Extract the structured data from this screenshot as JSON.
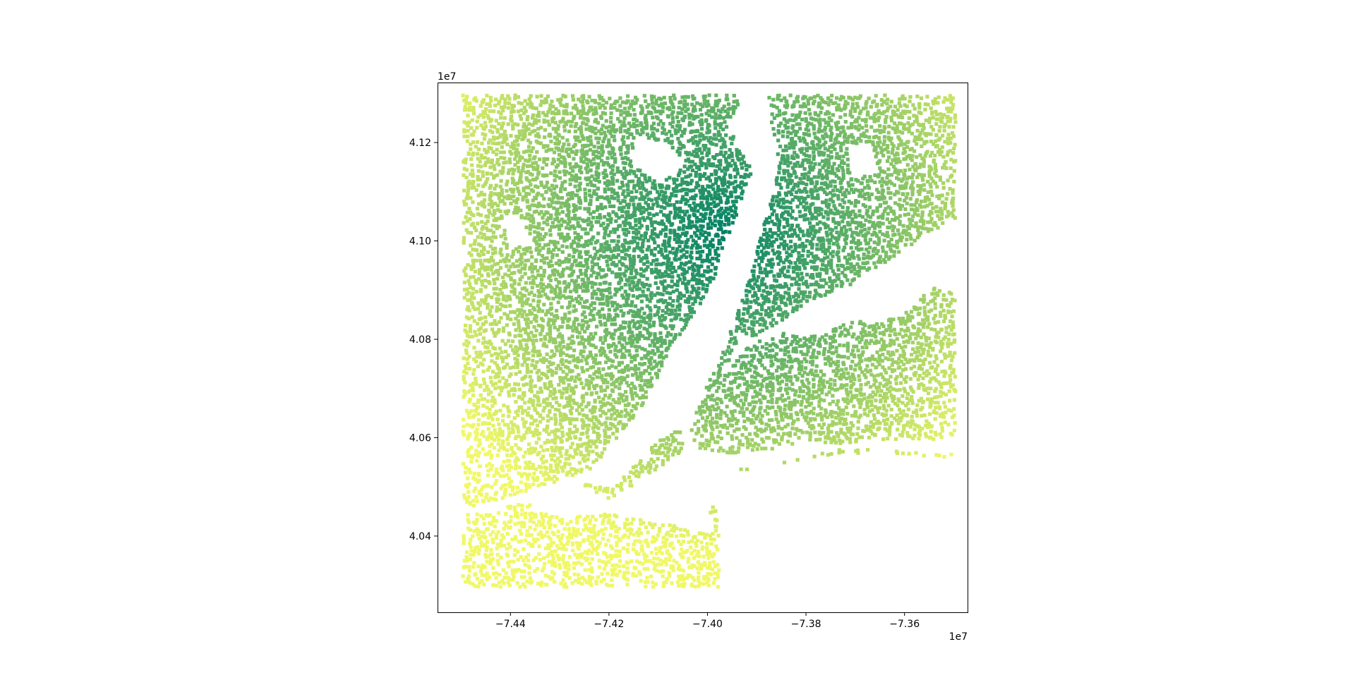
{
  "chart_data": {
    "type": "scatter",
    "title": "",
    "xlabel": "",
    "ylabel": "",
    "x_offset_text": "1e7",
    "y_offset_text": "1e7",
    "xlim": [
      -74.548,
      -73.472
    ],
    "ylim": [
      40.245,
      41.322
    ],
    "x_ticks": [
      -74.4,
      -74.2,
      -74.0,
      -73.8,
      -73.6
    ],
    "x_tick_labels": [
      "−7.44",
      "−7.42",
      "−7.40",
      "−7.38",
      "−7.36"
    ],
    "y_ticks": [
      40.4,
      40.6,
      40.8,
      41.0,
      41.2
    ],
    "y_tick_labels": [
      "4.04",
      "4.06",
      "4.08",
      "4.10",
      "4.12"
    ],
    "grid": false,
    "legend": "none",
    "colormap": "summer",
    "colormap_colors": [
      "#008066",
      "#f0f866"
    ],
    "point_color": "#7fb266",
    "data_extent": {
      "x": [
        -74.5,
        -73.5
      ],
      "y": [
        40.3,
        41.3
      ]
    },
    "densest_point": {
      "x": -73.97,
      "y": 41.02
    },
    "landmasses": [
      {
        "name": "mainland",
        "outline": [
          [
            -74.5,
            41.3
          ],
          [
            -73.93,
            41.3
          ],
          [
            -73.96,
            41.24
          ],
          [
            -73.94,
            41.19
          ],
          [
            -73.91,
            41.15
          ],
          [
            -73.93,
            41.1
          ],
          [
            -73.95,
            41.04
          ],
          [
            -73.98,
            40.97
          ],
          [
            -73.99,
            40.92
          ],
          [
            -74.02,
            40.87
          ],
          [
            -74.06,
            40.81
          ],
          [
            -74.09,
            40.76
          ],
          [
            -74.11,
            40.71
          ],
          [
            -74.14,
            40.66
          ],
          [
            -74.19,
            40.6
          ],
          [
            -74.24,
            40.54
          ],
          [
            -74.35,
            40.5
          ],
          [
            -74.45,
            40.47
          ],
          [
            -74.5,
            40.46
          ]
        ]
      },
      {
        "name": "mainland-east",
        "outline": [
          [
            -73.88,
            41.3
          ],
          [
            -73.5,
            41.3
          ],
          [
            -73.5,
            41.05
          ],
          [
            -73.57,
            41.01
          ],
          [
            -73.64,
            40.96
          ],
          [
            -73.72,
            40.91
          ],
          [
            -73.8,
            40.88
          ],
          [
            -73.87,
            40.83
          ],
          [
            -73.93,
            40.8
          ],
          [
            -73.96,
            40.85
          ],
          [
            -73.92,
            40.93
          ],
          [
            -73.9,
            41.0
          ],
          [
            -73.88,
            41.08
          ],
          [
            -73.86,
            41.15
          ],
          [
            -73.87,
            41.21
          ]
        ]
      },
      {
        "name": "manhattan",
        "outline": [
          [
            -73.91,
            40.88
          ],
          [
            -73.93,
            40.87
          ],
          [
            -73.97,
            40.8
          ],
          [
            -74.0,
            40.75
          ],
          [
            -74.02,
            40.71
          ],
          [
            -74.0,
            40.7
          ],
          [
            -73.97,
            40.73
          ],
          [
            -73.95,
            40.78
          ],
          [
            -73.92,
            40.82
          ]
        ]
      },
      {
        "name": "long-island",
        "outline": [
          [
            -73.96,
            40.74
          ],
          [
            -73.92,
            40.79
          ],
          [
            -73.85,
            40.82
          ],
          [
            -73.78,
            40.81
          ],
          [
            -73.72,
            40.84
          ],
          [
            -73.66,
            40.84
          ],
          [
            -73.6,
            40.86
          ],
          [
            -73.55,
            40.91
          ],
          [
            -73.5,
            40.9
          ],
          [
            -73.5,
            40.6
          ],
          [
            -73.6,
            40.6
          ],
          [
            -73.67,
            40.6
          ],
          [
            -73.74,
            40.59
          ],
          [
            -73.8,
            40.6
          ],
          [
            -73.87,
            40.58
          ],
          [
            -73.95,
            40.57
          ],
          [
            -74.02,
            40.58
          ],
          [
            -74.04,
            40.61
          ],
          [
            -74.03,
            40.66
          ]
        ]
      },
      {
        "name": "staten-island",
        "outline": [
          [
            -74.26,
            40.51
          ],
          [
            -74.2,
            40.5
          ],
          [
            -74.1,
            40.6
          ],
          [
            -74.06,
            40.62
          ],
          [
            -74.05,
            40.58
          ],
          [
            -74.12,
            40.53
          ],
          [
            -74.2,
            40.48
          ],
          [
            -74.25,
            40.49
          ]
        ]
      },
      {
        "name": "new-jersey-south",
        "outline": [
          [
            -74.5,
            40.45
          ],
          [
            -74.37,
            40.47
          ],
          [
            -74.3,
            40.44
          ],
          [
            -74.2,
            40.45
          ],
          [
            -74.1,
            40.43
          ],
          [
            -74.0,
            40.41
          ],
          [
            -73.98,
            40.39
          ],
          [
            -73.98,
            40.3
          ],
          [
            -74.5,
            40.3
          ]
        ]
      },
      {
        "name": "rockaway",
        "outline": [
          [
            -73.94,
            40.54
          ],
          [
            -73.85,
            40.55
          ],
          [
            -73.75,
            40.58
          ],
          [
            -73.65,
            40.58
          ],
          [
            -73.55,
            40.57
          ],
          [
            -73.5,
            40.58
          ],
          [
            -73.5,
            40.56
          ],
          [
            -73.6,
            40.57
          ],
          [
            -73.75,
            40.57
          ],
          [
            -73.87,
            40.55
          ],
          [
            -73.94,
            40.53
          ]
        ]
      },
      {
        "name": "sandy-hook",
        "outline": [
          [
            -74.01,
            40.48
          ],
          [
            -73.99,
            40.48
          ],
          [
            -73.98,
            40.4
          ],
          [
            -74.0,
            40.4
          ]
        ]
      }
    ],
    "water_gaps": [
      {
        "name": "hudson-river",
        "outline": [
          [
            -73.95,
            41.3
          ],
          [
            -73.9,
            41.3
          ],
          [
            -73.88,
            41.22
          ],
          [
            -73.89,
            41.12
          ],
          [
            -73.93,
            41.02
          ],
          [
            -73.96,
            40.95
          ],
          [
            -73.98,
            40.88
          ],
          [
            -74.02,
            40.79
          ],
          [
            -74.05,
            40.7
          ],
          [
            -74.09,
            40.65
          ],
          [
            -74.07,
            40.63
          ],
          [
            -74.02,
            40.68
          ],
          [
            -73.98,
            40.76
          ],
          [
            -73.95,
            40.84
          ],
          [
            -73.92,
            40.92
          ],
          [
            -73.9,
            41.0
          ],
          [
            -73.87,
            41.1
          ],
          [
            -73.86,
            41.2
          ]
        ]
      },
      {
        "name": "lower-bay",
        "outline": [
          [
            -74.13,
            40.44
          ],
          [
            -74.0,
            40.45
          ],
          [
            -73.98,
            40.5
          ],
          [
            -74.05,
            40.53
          ],
          [
            -74.13,
            40.5
          ]
        ]
      },
      {
        "name": "lake-north",
        "outline": [
          [
            -74.15,
            41.22
          ],
          [
            -74.08,
            41.2
          ],
          [
            -74.05,
            41.16
          ],
          [
            -74.1,
            41.12
          ],
          [
            -74.16,
            41.16
          ]
        ]
      },
      {
        "name": "reservoir-east",
        "outline": [
          [
            -73.72,
            41.2
          ],
          [
            -73.67,
            41.2
          ],
          [
            -73.66,
            41.14
          ],
          [
            -73.71,
            41.13
          ]
        ]
      },
      {
        "name": "lake-west",
        "outline": [
          [
            -74.42,
            41.06
          ],
          [
            -74.38,
            41.05
          ],
          [
            -74.36,
            41.0
          ],
          [
            -74.41,
            40.99
          ]
        ]
      }
    ]
  }
}
